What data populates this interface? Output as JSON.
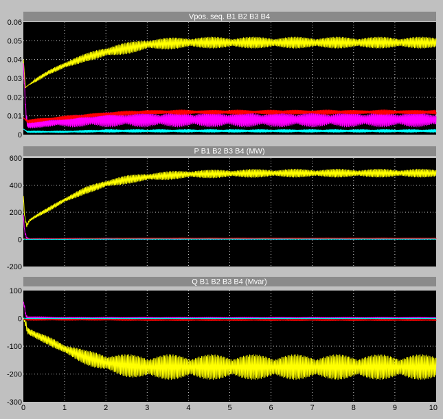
{
  "colors": {
    "background": "#c0c0c0",
    "panel_title_bar": "#8a8a8a",
    "plot_bg": "#000000",
    "grid": "#ffffff",
    "series": [
      "#ffff00",
      "#ff00ff",
      "#ff0000",
      "#00ffff"
    ]
  },
  "chart_data": [
    {
      "type": "line",
      "title": "Vpos. seq. B1 B2 B3 B4",
      "xlim": [
        0,
        10
      ],
      "ylim": [
        0,
        0.06
      ],
      "xticks": [],
      "yticks": [
        0,
        0.01,
        0.02,
        0.03,
        0.04,
        0.05,
        0.06
      ],
      "ytick_labels": [
        "0",
        "0.01",
        "0.02",
        "0.03",
        "0.04",
        "0.05",
        "0.06"
      ],
      "grid": true,
      "series": [
        {
          "color": "#ffff00",
          "x": [
            0,
            0.05,
            0.1,
            0.3,
            0.6,
            1,
            1.5,
            2,
            2.5,
            3,
            4,
            5,
            6,
            7,
            8,
            9,
            10
          ],
          "y": [
            0.04,
            0.025,
            0.026,
            0.029,
            0.033,
            0.037,
            0.041,
            0.044,
            0.046,
            0.048,
            0.049,
            0.049,
            0.049,
            0.049,
            0.049,
            0.049,
            0.049
          ],
          "ripple": [
            0,
            0,
            0,
            0.001,
            0.001,
            0.002,
            0.002,
            0.003,
            0.003,
            0.003,
            0.003,
            0.003,
            0.003,
            0.003,
            0.003,
            0.003,
            0.003
          ]
        },
        {
          "color": "#ff00ff",
          "x": [
            0,
            0.03,
            0.06,
            0.1,
            0.5,
            1,
            2,
            3,
            4,
            5,
            6,
            7,
            8,
            9,
            10
          ],
          "y": [
            0.038,
            0.025,
            0.012,
            0.005,
            0.006,
            0.007,
            0.008,
            0.008,
            0.008,
            0.008,
            0.008,
            0.008,
            0.008,
            0.008,
            0.008
          ],
          "ripple": [
            0,
            0.004,
            0.004,
            0.002,
            0.002,
            0.003,
            0.004,
            0.004,
            0.004,
            0.004,
            0.004,
            0.004,
            0.004,
            0.004,
            0.004
          ]
        },
        {
          "color": "#ff0000",
          "x": [
            0,
            0.1,
            0.5,
            1,
            2,
            3,
            4,
            5,
            6,
            7,
            8,
            9,
            10
          ],
          "y": [
            0.009,
            0.007,
            0.008,
            0.009,
            0.011,
            0.012,
            0.012,
            0.012,
            0.012,
            0.012,
            0.012,
            0.012,
            0.012
          ],
          "ripple": [
            0,
            0.001,
            0.001,
            0.001,
            0.001,
            0.0012,
            0.0012,
            0.0012,
            0.0012,
            0.0012,
            0.0012,
            0.0012,
            0.0012
          ]
        },
        {
          "color": "#00ffff",
          "x": [
            0,
            0.1,
            1,
            2,
            3,
            4,
            5,
            6,
            7,
            8,
            9,
            10
          ],
          "y": [
            0.003,
            0.0015,
            0.0015,
            0.002,
            0.002,
            0.002,
            0.002,
            0.002,
            0.002,
            0.002,
            0.002,
            0.002
          ],
          "ripple": [
            0,
            0.0005,
            0.0005,
            0.0008,
            0.0008,
            0.0008,
            0.0008,
            0.0008,
            0.0008,
            0.0008,
            0.0008,
            0.0008
          ]
        }
      ]
    },
    {
      "type": "line",
      "title": "P B1 B2 B3 B4 (MW)",
      "xlim": [
        0,
        10
      ],
      "ylim": [
        -200,
        600
      ],
      "xticks": [],
      "yticks": [
        -200,
        0,
        200,
        400,
        600
      ],
      "ytick_labels": [
        "-200",
        "0",
        "200",
        "400",
        "600"
      ],
      "grid": true,
      "series": [
        {
          "color": "#ffff00",
          "x": [
            0,
            0.03,
            0.08,
            0.15,
            0.3,
            0.6,
            1,
            1.5,
            2,
            2.5,
            3,
            4,
            5,
            6,
            7,
            8,
            9,
            10
          ],
          "y": [
            320,
            170,
            100,
            140,
            170,
            220,
            290,
            360,
            410,
            440,
            460,
            480,
            485,
            488,
            488,
            488,
            488,
            488
          ],
          "ripple": [
            0,
            20,
            15,
            10,
            10,
            15,
            20,
            25,
            30,
            30,
            30,
            30,
            30,
            30,
            30,
            30,
            30,
            30
          ]
        },
        {
          "color": "#ff00ff",
          "x": [
            0,
            0.03,
            0.08,
            0.15,
            1,
            2,
            3,
            4,
            5,
            6,
            7,
            8,
            9,
            10
          ],
          "y": [
            180,
            60,
            10,
            3,
            4,
            5,
            5,
            5,
            5,
            5,
            5,
            5,
            5,
            5
          ],
          "ripple": [
            0,
            20,
            10,
            4,
            4,
            5,
            5,
            5,
            5,
            5,
            5,
            5,
            5,
            5
          ]
        },
        {
          "color": "#ff0000",
          "x": [
            0,
            0.1,
            1,
            2,
            3,
            4,
            5,
            6,
            7,
            8,
            9,
            10
          ],
          "y": [
            5,
            3,
            4,
            6,
            8,
            8,
            8,
            8,
            8,
            8,
            8,
            8
          ],
          "ripple": [
            0,
            2,
            2,
            3,
            3,
            3,
            3,
            3,
            3,
            3,
            3,
            3
          ]
        },
        {
          "color": "#00ffff",
          "x": [
            0,
            0.1,
            1,
            2,
            3,
            4,
            5,
            6,
            7,
            8,
            9,
            10
          ],
          "y": [
            2,
            1,
            1,
            2,
            2,
            2,
            2,
            2,
            2,
            2,
            2,
            2
          ],
          "ripple": [
            0,
            1,
            1,
            1,
            1,
            1,
            1,
            1,
            1,
            1,
            1,
            1
          ]
        }
      ]
    },
    {
      "type": "line",
      "title": "Q B1 B2 B3 B4 (Mvar)",
      "xlim": [
        0,
        10
      ],
      "ylim": [
        -300,
        100
      ],
      "xticks": [
        0,
        1,
        2,
        3,
        4,
        5,
        6,
        7,
        8,
        9,
        10
      ],
      "xtick_labels": [
        "0",
        "1",
        "2",
        "3",
        "4",
        "5",
        "6",
        "7",
        "8",
        "9",
        "10"
      ],
      "yticks": [
        -300,
        -200,
        -100,
        0,
        100
      ],
      "ytick_labels": [
        "-300",
        "-200",
        "-100",
        "0",
        "100"
      ],
      "grid": true,
      "series": [
        {
          "color": "#ffff00",
          "x": [
            0,
            0.03,
            0.06,
            0.1,
            0.3,
            0.6,
            1,
            1.5,
            2,
            2.5,
            3,
            4,
            5,
            6,
            7,
            8,
            9,
            10
          ],
          "y": [
            0,
            -10,
            -20,
            -45,
            -60,
            -80,
            -110,
            -140,
            -160,
            -170,
            -175,
            -175,
            -175,
            -175,
            -175,
            -175,
            -175,
            -175
          ],
          "ripple": [
            0,
            10,
            20,
            15,
            12,
            15,
            20,
            25,
            35,
            40,
            45,
            45,
            45,
            45,
            45,
            45,
            45,
            45
          ]
        },
        {
          "color": "#ff00ff",
          "x": [
            0,
            0.03,
            0.06,
            0.1,
            1,
            2,
            3,
            4,
            5,
            6,
            7,
            8,
            9,
            10
          ],
          "y": [
            60,
            40,
            10,
            3,
            2,
            2,
            2,
            2,
            2,
            2,
            2,
            2,
            2,
            2
          ],
          "ripple": [
            0,
            15,
            10,
            4,
            2,
            2,
            2,
            2,
            2,
            2,
            2,
            2,
            2,
            2
          ]
        },
        {
          "color": "#ff0000",
          "x": [
            0,
            0.1,
            1,
            2,
            3,
            4,
            5,
            6,
            7,
            8,
            9,
            10
          ],
          "y": [
            -5,
            -5,
            -5,
            -5,
            -6,
            -6,
            -6,
            -6,
            -6,
            -6,
            -6,
            -6
          ],
          "ripple": [
            0,
            2,
            2,
            2,
            2,
            2,
            2,
            2,
            2,
            2,
            2,
            2
          ]
        },
        {
          "color": "#00ffff",
          "x": [
            0,
            0.1,
            1,
            2,
            3,
            4,
            5,
            6,
            7,
            8,
            9,
            10
          ],
          "y": [
            1,
            0,
            0,
            0,
            0,
            0,
            0,
            0,
            0,
            0,
            0,
            0
          ],
          "ripple": [
            0,
            1,
            1,
            1,
            1,
            1,
            1,
            1,
            1,
            1,
            1,
            1
          ]
        }
      ]
    }
  ]
}
